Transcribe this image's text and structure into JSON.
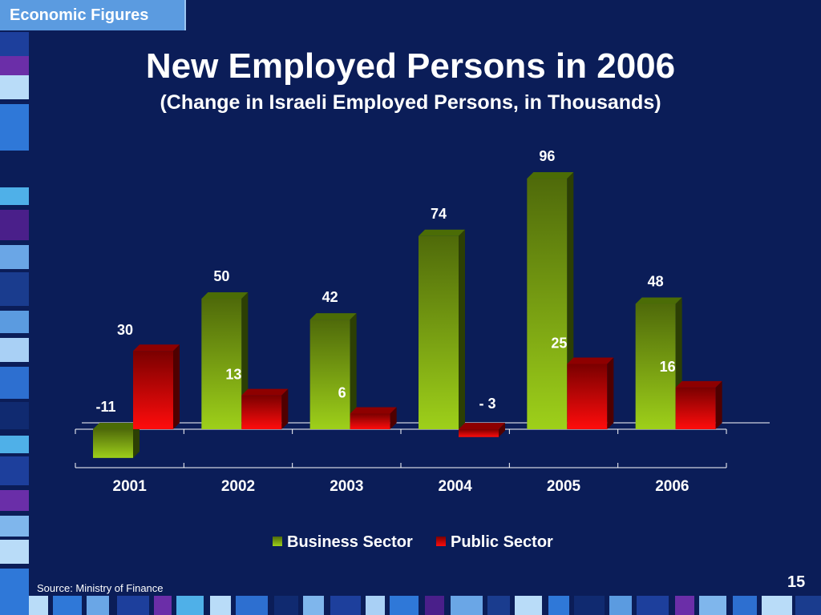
{
  "header": {
    "tab_label": "Economic Figures"
  },
  "title": "New Employed Persons in 2006",
  "subtitle": "(Change in Israeli Employed Persons, in Thousands)",
  "source": "Source: Ministry of Finance",
  "page_number": "15",
  "colors": {
    "background": "#0b1d58",
    "business": "#8fbf0c",
    "public": "#e00000",
    "text": "#ffffff",
    "header_tab": "#5b9be0"
  },
  "chart_data": {
    "type": "bar",
    "categories": [
      "2001",
      "2002",
      "2003",
      "2004",
      "2005",
      "2006"
    ],
    "series": [
      {
        "name": "Business Sector",
        "values": [
          -11,
          50,
          42,
          74,
          96,
          48
        ],
        "labels": [
          "-11",
          "50",
          "42",
          "74",
          "96",
          "48"
        ]
      },
      {
        "name": "Public Sector",
        "values": [
          30,
          13,
          6,
          -3,
          25,
          16
        ],
        "labels": [
          "30",
          "13",
          "6",
          "- 3",
          "25",
          "16"
        ]
      }
    ],
    "legend": "bottom",
    "grid": false
  }
}
